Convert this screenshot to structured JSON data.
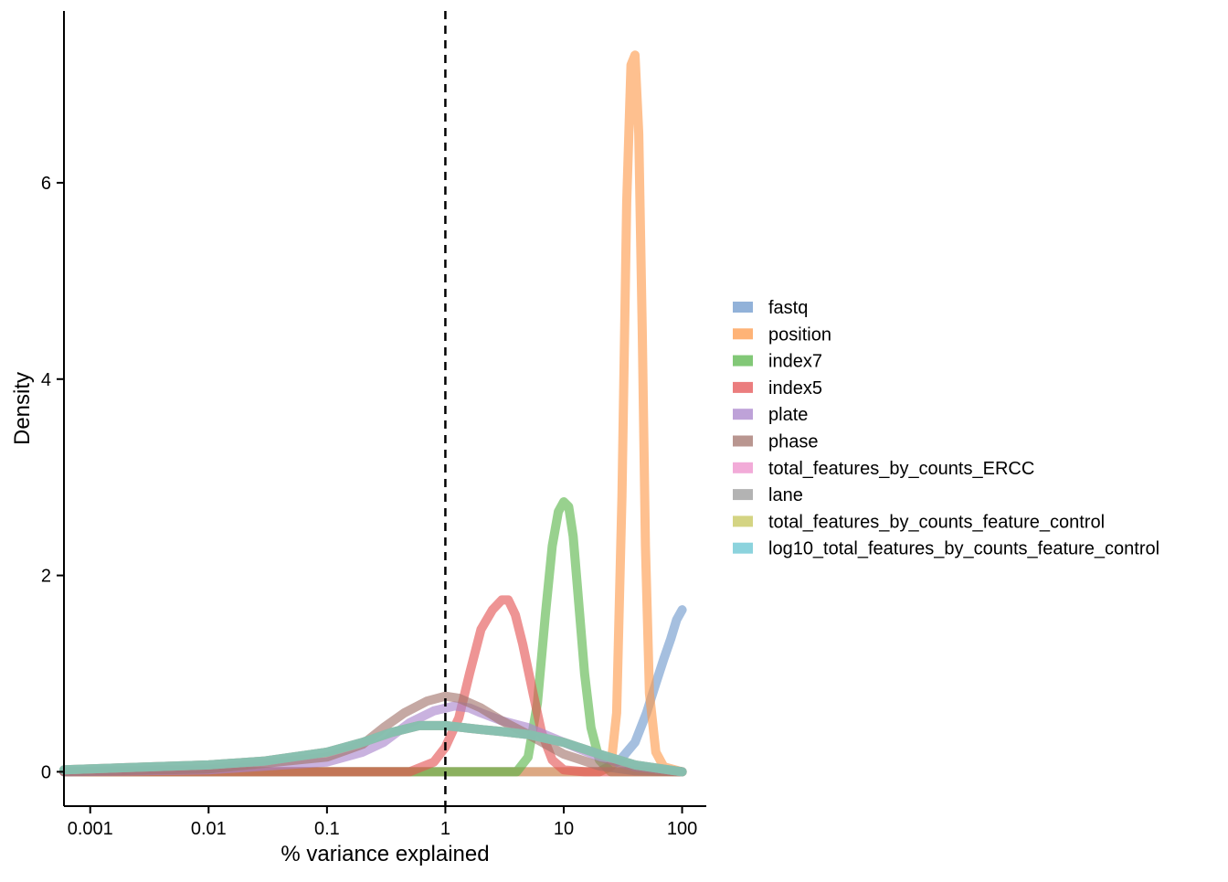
{
  "chart_data": {
    "type": "line",
    "xlabel": "% variance explained",
    "ylabel": "Density",
    "x_scale": "log10",
    "xlim": [
      0.0006,
      160
    ],
    "ylim": [
      -0.35,
      7.75
    ],
    "x_ticks": [
      0.001,
      0.01,
      0.1,
      1,
      10,
      100
    ],
    "x_tick_labels": [
      "0.001",
      "0.01",
      "0.1",
      "1",
      "10",
      "100"
    ],
    "y_ticks": [
      0,
      2,
      4,
      6
    ],
    "y_tick_labels": [
      "0",
      "2",
      "4",
      "6"
    ],
    "reference_line": {
      "x": 1,
      "style": "dashed",
      "color": "#000000"
    },
    "grid": false,
    "legend_position": "right",
    "series": [
      {
        "name": "fastq",
        "color": "#6E98CC",
        "x": [
          0.0006,
          1,
          20,
          30,
          40,
          50,
          60,
          70,
          80,
          90,
          100
        ],
        "y": [
          0,
          0,
          0,
          0.12,
          0.3,
          0.6,
          0.9,
          1.15,
          1.35,
          1.55,
          1.65
        ]
      },
      {
        "name": "position",
        "color": "#FD9A4A",
        "x": [
          0.0006,
          1,
          20,
          25,
          28,
          31,
          34,
          37,
          40,
          43,
          46,
          49,
          53,
          60,
          70,
          100
        ],
        "y": [
          0,
          0,
          0,
          0.05,
          0.6,
          2.8,
          5.8,
          7.2,
          7.3,
          6.5,
          4.5,
          2.3,
          0.8,
          0.2,
          0.05,
          0
        ]
      },
      {
        "name": "index7",
        "color": "#58B549",
        "x": [
          0.0006,
          1,
          4,
          5,
          6,
          7,
          8,
          9,
          10,
          11,
          12,
          13,
          15,
          17,
          20,
          25,
          100
        ],
        "y": [
          0,
          0,
          0,
          0.15,
          0.7,
          1.6,
          2.3,
          2.65,
          2.75,
          2.7,
          2.4,
          1.9,
          1.0,
          0.45,
          0.12,
          0,
          0
        ]
      },
      {
        "name": "index5",
        "color": "#E45253",
        "x": [
          0.0006,
          0.5,
          0.8,
          1,
          1.3,
          1.6,
          2,
          2.5,
          3,
          3.4,
          3.9,
          4.5,
          5.5,
          6.5,
          8,
          10,
          15,
          100
        ],
        "y": [
          0,
          0,
          0.1,
          0.25,
          0.55,
          1.0,
          1.45,
          1.65,
          1.75,
          1.75,
          1.6,
          1.3,
          0.8,
          0.4,
          0.12,
          0.02,
          0,
          0
        ]
      },
      {
        "name": "plate",
        "color": "#A883CB",
        "x": [
          0.0006,
          0.01,
          0.1,
          0.2,
          0.3,
          0.5,
          0.8,
          1.2,
          1.6,
          2,
          3,
          5,
          10,
          20,
          40,
          100
        ],
        "y": [
          0,
          0.02,
          0.1,
          0.2,
          0.3,
          0.5,
          0.62,
          0.67,
          0.65,
          0.6,
          0.52,
          0.45,
          0.3,
          0.15,
          0.05,
          0
        ]
      },
      {
        "name": "phase",
        "color": "#A2736B",
        "x": [
          0.0006,
          0.01,
          0.1,
          0.2,
          0.3,
          0.45,
          0.7,
          1,
          1.3,
          2,
          3,
          5,
          10,
          20,
          40,
          100
        ],
        "y": [
          0,
          0.03,
          0.15,
          0.28,
          0.45,
          0.6,
          0.72,
          0.77,
          0.75,
          0.65,
          0.52,
          0.38,
          0.18,
          0.06,
          0.01,
          0
        ]
      },
      {
        "name": "total_features_by_counts_ERCC",
        "color": "#EE8FCB",
        "x": [
          0.0006,
          0.001,
          0.01,
          0.03,
          0.1,
          0.2,
          0.35,
          0.6,
          1,
          2,
          3,
          5,
          10,
          20,
          40,
          100
        ],
        "y": [
          0.02,
          0.03,
          0.07,
          0.11,
          0.2,
          0.3,
          0.4,
          0.47,
          0.47,
          0.43,
          0.41,
          0.38,
          0.3,
          0.18,
          0.07,
          0
        ]
      },
      {
        "name": "lane",
        "color": "#999999",
        "x": [
          0.0006,
          0.001,
          0.01,
          0.03,
          0.1,
          0.2,
          0.35,
          0.6,
          1,
          2,
          3,
          5,
          10,
          20,
          40,
          100
        ],
        "y": [
          0.02,
          0.03,
          0.07,
          0.11,
          0.2,
          0.3,
          0.4,
          0.47,
          0.47,
          0.43,
          0.41,
          0.38,
          0.3,
          0.18,
          0.07,
          0
        ]
      },
      {
        "name": "total_features_by_counts_feature_control",
        "color": "#C6C65A",
        "x": [
          0.0006,
          0.001,
          0.01,
          0.03,
          0.1,
          0.2,
          0.35,
          0.6,
          1,
          2,
          3,
          5,
          10,
          20,
          40,
          100
        ],
        "y": [
          0.02,
          0.03,
          0.07,
          0.11,
          0.2,
          0.3,
          0.4,
          0.47,
          0.47,
          0.43,
          0.41,
          0.38,
          0.3,
          0.18,
          0.07,
          0
        ]
      },
      {
        "name": "log10_total_features_by_counts_feature_control",
        "color": "#66C4D1",
        "x": [
          0.0006,
          0.001,
          0.01,
          0.03,
          0.1,
          0.2,
          0.35,
          0.6,
          1,
          2,
          3,
          5,
          10,
          20,
          40,
          100
        ],
        "y": [
          0.02,
          0.03,
          0.07,
          0.11,
          0.2,
          0.3,
          0.4,
          0.47,
          0.47,
          0.43,
          0.41,
          0.38,
          0.3,
          0.18,
          0.07,
          0
        ]
      }
    ]
  }
}
